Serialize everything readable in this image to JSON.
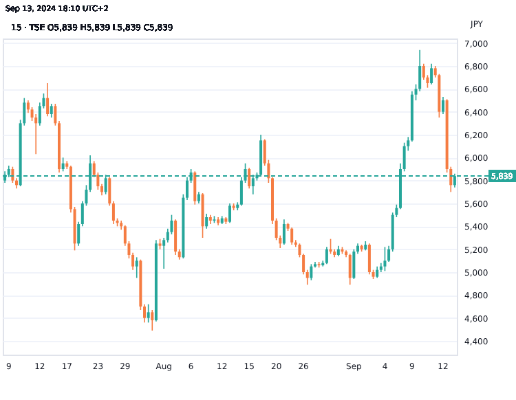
{
  "chart_data": {
    "type": "candlestick",
    "title": "15 · TSE O5,839 H5,839 L5,839 C5,839",
    "ylabel": "JPY",
    "annotations": [
      "Sep 13, 2024 18:10 UTC+2"
    ],
    "categories": [
      null,
      "9",
      null,
      null,
      null,
      null,
      null,
      null,
      null,
      "12",
      null,
      null,
      null,
      null,
      null,
      null,
      "17",
      null,
      null,
      null,
      null,
      null,
      null,
      null,
      "23",
      null,
      null,
      null,
      null,
      null,
      null,
      "29",
      null,
      null,
      null,
      null,
      null,
      null,
      null,
      null,
      null,
      "Aug",
      null,
      null,
      null,
      null,
      null,
      null,
      "6",
      null,
      null,
      null,
      null,
      null,
      null,
      null,
      "12",
      null,
      null,
      null,
      null,
      null,
      null,
      "15",
      null,
      null,
      null,
      null,
      null,
      null,
      "20",
      null,
      null,
      null,
      null,
      null,
      null,
      "26",
      null,
      null,
      null,
      null,
      null,
      null,
      null,
      null,
      null,
      null,
      null,
      null,
      "Sep",
      null,
      null,
      null,
      null,
      null,
      null,
      null,
      "4",
      null,
      null,
      null,
      null,
      null,
      null,
      "9",
      null,
      null,
      null,
      null,
      null,
      null,
      null,
      "12",
      null,
      null,
      null
    ],
    "ohlc": [
      [
        5800,
        5880,
        5780,
        5850
      ],
      [
        5850,
        5930,
        5830,
        5900
      ],
      [
        5900,
        5920,
        5780,
        5800
      ],
      [
        5800,
        5820,
        5730,
        5760
      ],
      [
        5760,
        6330,
        5750,
        6300
      ],
      [
        6300,
        6520,
        6280,
        6480
      ],
      [
        6480,
        6500,
        6390,
        6420
      ],
      [
        6420,
        6440,
        6320,
        6350
      ],
      [
        6350,
        6380,
        6030,
        6300
      ],
      [
        6300,
        6480,
        6280,
        6450
      ],
      [
        6450,
        6560,
        6430,
        6520
      ],
      [
        6520,
        6650,
        6360,
        6380
      ],
      [
        6380,
        6470,
        6350,
        6450
      ],
      [
        6450,
        6470,
        6280,
        6300
      ],
      [
        6300,
        6320,
        5870,
        5900
      ],
      [
        5900,
        6000,
        5880,
        5950
      ],
      [
        5950,
        5970,
        5900,
        5920
      ],
      [
        5920,
        5930,
        5520,
        5550
      ],
      [
        5550,
        5570,
        5190,
        5250
      ],
      [
        5250,
        5440,
        5230,
        5420
      ],
      [
        5420,
        5620,
        5400,
        5600
      ],
      [
        5600,
        5760,
        5580,
        5720
      ],
      [
        5720,
        6020,
        5700,
        5950
      ],
      [
        5950,
        5970,
        5830,
        5850
      ],
      [
        5850,
        5870,
        5720,
        5750
      ],
      [
        5750,
        5770,
        5670,
        5700
      ],
      [
        5700,
        5850,
        5680,
        5820
      ],
      [
        5820,
        5830,
        5580,
        5600
      ],
      [
        5600,
        5620,
        5420,
        5450
      ],
      [
        5450,
        5470,
        5400,
        5430
      ],
      [
        5430,
        5450,
        5370,
        5400
      ],
      [
        5400,
        5410,
        5230,
        5250
      ],
      [
        5250,
        5270,
        5120,
        5150
      ],
      [
        5150,
        5170,
        5020,
        5050
      ],
      [
        5050,
        5130,
        4950,
        5100
      ],
      [
        5100,
        5110,
        4670,
        4700
      ],
      [
        4700,
        4720,
        4560,
        4600
      ],
      [
        4600,
        4720,
        4560,
        4650
      ],
      [
        4650,
        4670,
        4490,
        4580
      ],
      [
        4580,
        5280,
        4570,
        5250
      ],
      [
        5250,
        5290,
        5200,
        5230
      ],
      [
        5230,
        5300,
        5030,
        5280
      ],
      [
        5280,
        5380,
        5260,
        5350
      ],
      [
        5350,
        5500,
        5330,
        5450
      ],
      [
        5450,
        5460,
        5150,
        5180
      ],
      [
        5180,
        5200,
        5110,
        5130
      ],
      [
        5130,
        5680,
        5120,
        5650
      ],
      [
        5650,
        5830,
        5630,
        5800
      ],
      [
        5800,
        5900,
        5780,
        5870
      ],
      [
        5870,
        5880,
        5590,
        5620
      ],
      [
        5620,
        5700,
        5600,
        5680
      ],
      [
        5680,
        5690,
        5300,
        5400
      ],
      [
        5400,
        5510,
        5380,
        5480
      ],
      [
        5480,
        5500,
        5420,
        5450
      ],
      [
        5450,
        5490,
        5430,
        5460
      ],
      [
        5460,
        5480,
        5410,
        5430
      ],
      [
        5430,
        5490,
        5420,
        5470
      ],
      [
        5470,
        5480,
        5420,
        5440
      ],
      [
        5440,
        5600,
        5430,
        5580
      ],
      [
        5580,
        5600,
        5540,
        5560
      ],
      [
        5560,
        5610,
        5540,
        5590
      ],
      [
        5590,
        5830,
        5580,
        5800
      ],
      [
        5800,
        5950,
        5780,
        5900
      ],
      [
        5900,
        5910,
        5730,
        5750
      ],
      [
        5750,
        5850,
        5680,
        5820
      ],
      [
        5820,
        5870,
        5800,
        5850
      ],
      [
        5850,
        6200,
        5840,
        6150
      ],
      [
        6150,
        6160,
        5930,
        5950
      ],
      [
        5950,
        5980,
        5780,
        5820
      ],
      [
        5820,
        5830,
        5420,
        5450
      ],
      [
        5450,
        5470,
        5280,
        5300
      ],
      [
        5300,
        5320,
        5210,
        5250
      ],
      [
        5250,
        5460,
        5240,
        5420
      ],
      [
        5420,
        5430,
        5360,
        5380
      ],
      [
        5380,
        5390,
        5240,
        5260
      ],
      [
        5260,
        5280,
        5220,
        5240
      ],
      [
        5240,
        5250,
        5130,
        5150
      ],
      [
        5150,
        5160,
        4980,
        5000
      ],
      [
        5000,
        5020,
        4890,
        4950
      ],
      [
        4950,
        5070,
        4930,
        5050
      ],
      [
        5050,
        5090,
        5040,
        5070
      ],
      [
        5070,
        5090,
        5040,
        5060
      ],
      [
        5060,
        5100,
        5050,
        5080
      ],
      [
        5080,
        5220,
        5070,
        5200
      ],
      [
        5200,
        5290,
        5160,
        5180
      ],
      [
        5180,
        5200,
        5130,
        5150
      ],
      [
        5150,
        5230,
        5140,
        5200
      ],
      [
        5200,
        5220,
        5160,
        5180
      ],
      [
        5180,
        5190,
        5130,
        5150
      ],
      [
        5150,
        5160,
        4890,
        4950
      ],
      [
        4950,
        5200,
        4940,
        5180
      ],
      [
        5180,
        5250,
        5160,
        5230
      ],
      [
        5230,
        5240,
        5180,
        5200
      ],
      [
        5200,
        5270,
        5190,
        5240
      ],
      [
        5240,
        5250,
        4980,
        5000
      ],
      [
        5000,
        5020,
        4940,
        4960
      ],
      [
        4960,
        5050,
        4950,
        5020
      ],
      [
        5020,
        5080,
        5000,
        5050
      ],
      [
        5050,
        5220,
        5010,
        5100
      ],
      [
        5100,
        5230,
        5090,
        5200
      ],
      [
        5200,
        5520,
        5180,
        5500
      ],
      [
        5500,
        5590,
        5480,
        5560
      ],
      [
        5560,
        5950,
        5550,
        5900
      ],
      [
        5900,
        6130,
        5880,
        6100
      ],
      [
        6100,
        6180,
        6060,
        6150
      ],
      [
        6150,
        6580,
        6140,
        6550
      ],
      [
        6550,
        6640,
        6500,
        6600
      ],
      [
        6600,
        6940,
        6580,
        6800
      ],
      [
        6800,
        6820,
        6680,
        6700
      ],
      [
        6700,
        6720,
        6610,
        6650
      ],
      [
        6650,
        6820,
        6640,
        6780
      ],
      [
        6780,
        6800,
        6700,
        6720
      ],
      [
        6720,
        6730,
        6350,
        6400
      ],
      [
        6400,
        6530,
        6380,
        6500
      ],
      [
        6500,
        6510,
        5870,
        5900
      ],
      [
        5900,
        5920,
        5700,
        5760
      ],
      [
        5760,
        5860,
        5740,
        5839
      ]
    ],
    "colors": [
      "#26a69a",
      "#26a69a",
      "#f57c42",
      "#f57c42",
      "#26a69a",
      "#26a69a",
      "#f57c42",
      "#f57c42",
      "#f57c42",
      "#26a69a",
      "#26a69a",
      "#f57c42",
      "#26a69a",
      "#f57c42",
      "#f57c42",
      "#26a69a",
      "#f57c42",
      "#f57c42",
      "#f57c42",
      "#26a69a",
      "#26a69a",
      "#26a69a",
      "#26a69a",
      "#f57c42",
      "#f57c42",
      "#f57c42",
      "#26a69a",
      "#f57c42",
      "#f57c42",
      "#f57c42",
      "#f57c42",
      "#f57c42",
      "#f57c42",
      "#f57c42",
      "#26a69a",
      "#f57c42",
      "#f57c42",
      "#26a69a",
      "#f57c42",
      "#26a69a",
      "#f57c42",
      "#26a69a",
      "#26a69a",
      "#26a69a",
      "#f57c42",
      "#f57c42",
      "#26a69a",
      "#26a69a",
      "#26a69a",
      "#f57c42",
      "#26a69a",
      "#f57c42",
      "#26a69a",
      "#f57c42",
      "#26a69a",
      "#f57c42",
      "#26a69a",
      "#f57c42",
      "#26a69a",
      "#f57c42",
      "#26a69a",
      "#26a69a",
      "#26a69a",
      "#f57c42",
      "#26a69a",
      "#26a69a",
      "#26a69a",
      "#f57c42",
      "#f57c42",
      "#f57c42",
      "#f57c42",
      "#f57c42",
      "#26a69a",
      "#f57c42",
      "#f57c42",
      "#f57c42",
      "#f57c42",
      "#f57c42",
      "#f57c42",
      "#26a69a",
      "#26a69a",
      "#f57c42",
      "#26a69a",
      "#26a69a",
      "#f57c42",
      "#f57c42",
      "#26a69a",
      "#f57c42",
      "#f57c42",
      "#f57c42",
      "#26a69a",
      "#26a69a",
      "#f57c42",
      "#26a69a",
      "#f57c42",
      "#f57c42",
      "#26a69a",
      "#26a69a",
      "#26a69a",
      "#26a69a",
      "#26a69a",
      "#26a69a",
      "#26a69a",
      "#26a69a",
      "#26a69a",
      "#26a69a",
      "#26a69a",
      "#26a69a",
      "#f57c42",
      "#f57c42",
      "#26a69a",
      "#f57c42",
      "#f57c42",
      "#26a69a",
      "#f57c42",
      "#f57c42",
      "#26a69a"
    ],
    "ylim": [
      4280,
      7040
    ],
    "yticks": [
      {
        "value": 4400,
        "label": "4,400"
      },
      {
        "value": 4600,
        "label": "4,600"
      },
      {
        "value": 4800,
        "label": "4,800"
      },
      {
        "value": 5000,
        "label": "5,000"
      },
      {
        "value": 5200,
        "label": "5,200"
      },
      {
        "value": 5400,
        "label": "5,400"
      },
      {
        "value": 5600,
        "label": "5,600"
      },
      {
        "value": 5800,
        "label": "5,800"
      },
      {
        "value": 6000,
        "label": "6,000"
      },
      {
        "value": 6200,
        "label": "6,200"
      },
      {
        "value": 6400,
        "label": "6,400"
      },
      {
        "value": 6600,
        "label": "6,600"
      },
      {
        "value": 6800,
        "label": "6,800"
      },
      {
        "value": 7000,
        "label": "7,000"
      }
    ],
    "grid": "y",
    "ref_lines": [
      {
        "axis": "y",
        "value": 5839,
        "label": "5,839",
        "color": "#26a69a",
        "line_style": "dashed"
      }
    ]
  }
}
